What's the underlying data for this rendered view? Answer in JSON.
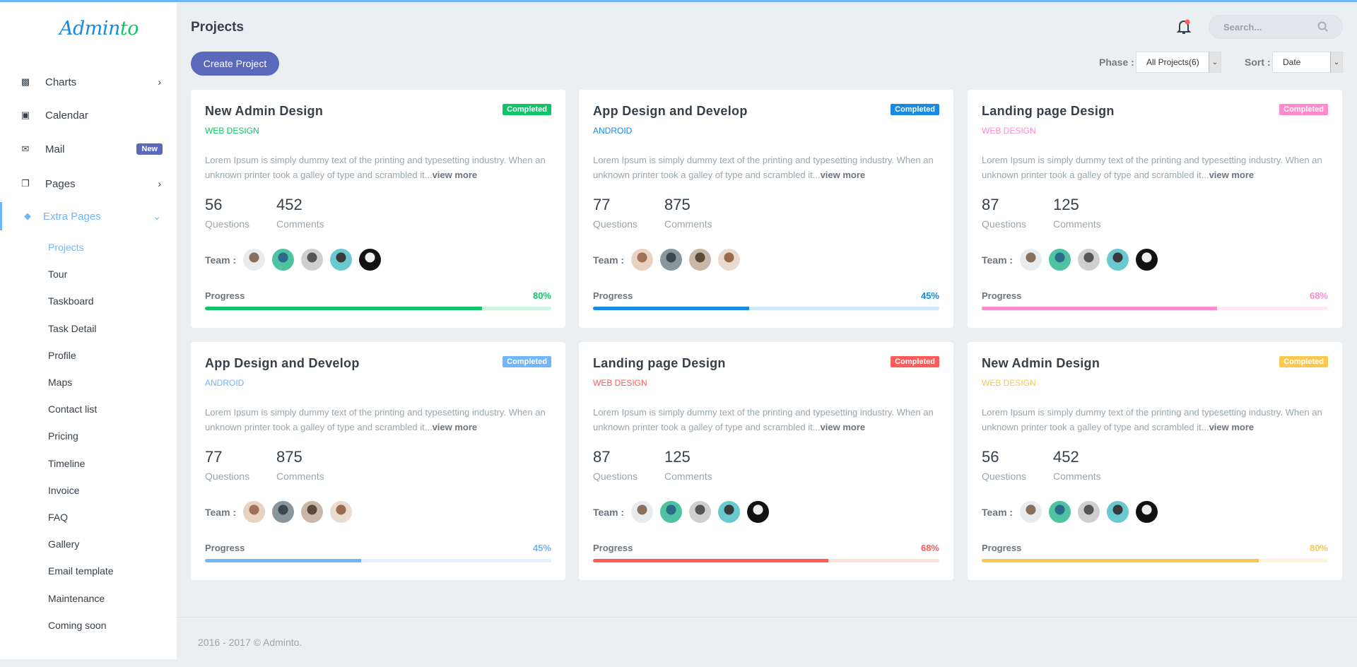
{
  "app": {
    "logo": "Adminto"
  },
  "sidebar": {
    "items": [
      {
        "label": "Charts",
        "icon": "bar-chart-icon",
        "chevron": "right"
      },
      {
        "label": "Calendar",
        "icon": "calendar-icon"
      },
      {
        "label": "Mail",
        "icon": "mail-icon",
        "badge": "New"
      },
      {
        "label": "Pages",
        "icon": "pages-icon",
        "chevron": "right"
      },
      {
        "label": "Extra Pages",
        "icon": "layers-icon",
        "chevron": "down",
        "active": true
      }
    ],
    "subitems": [
      "Projects",
      "Tour",
      "Taskboard",
      "Task Detail",
      "Profile",
      "Maps",
      "Contact list",
      "Pricing",
      "Timeline",
      "Invoice",
      "FAQ",
      "Gallery",
      "Email template",
      "Maintenance",
      "Coming soon"
    ],
    "active_subitem": "Projects"
  },
  "header": {
    "title": "Projects",
    "create_label": "Create Project",
    "search_placeholder": "Search...",
    "phase_label": "Phase :",
    "phase_value": "All Projects(6)",
    "sort_label": "Sort :",
    "sort_value": "Date"
  },
  "colors": {
    "accent": "#71b6f9",
    "primary": "#5b69bc"
  },
  "labels": {
    "questions": "Questions",
    "comments": "Comments",
    "team": "Team :",
    "progress": "Progress",
    "view_more": "view more",
    "description": "Lorem Ipsum is simply dummy text of the printing and typesetting industry. When an unknown printer took a galley of type and scrambled it..."
  },
  "projects": [
    {
      "title": "New Admin Design",
      "status": "Completed",
      "category": "WEB DESIGN",
      "color": "#10c469",
      "questions": "56",
      "comments": "452",
      "progress": 80,
      "progress_label": "80%",
      "team": 5
    },
    {
      "title": "App Design and Develop",
      "status": "Completed",
      "category": "ANDROID",
      "color": "#188ae2",
      "questions": "77",
      "comments": "875",
      "progress": 45,
      "progress_label": "45%",
      "team": 4
    },
    {
      "title": "Landing page Design",
      "status": "Completed",
      "category": "WEB DESIGN",
      "color": "#ff8acc",
      "questions": "87",
      "comments": "125",
      "progress": 68,
      "progress_label": "68%",
      "team": 5
    },
    {
      "title": "App Design and Develop",
      "status": "Completed",
      "category": "ANDROID",
      "color": "#71b6f9",
      "questions": "77",
      "comments": "875",
      "progress": 45,
      "progress_label": "45%",
      "team": 4
    },
    {
      "title": "Landing page Design",
      "status": "Completed",
      "category": "WEB DESIGN",
      "color": "#ff5b5b",
      "questions": "87",
      "comments": "125",
      "progress": 68,
      "progress_label": "68%",
      "team": 5
    },
    {
      "title": "New Admin Design",
      "status": "Completed",
      "category": "WEB DESIGN",
      "color": "#f9c851",
      "questions": "56",
      "comments": "452",
      "progress": 80,
      "progress_label": "80%",
      "team": 5
    }
  ],
  "footer": {
    "text": "2016 - 2017 © Adminto."
  }
}
